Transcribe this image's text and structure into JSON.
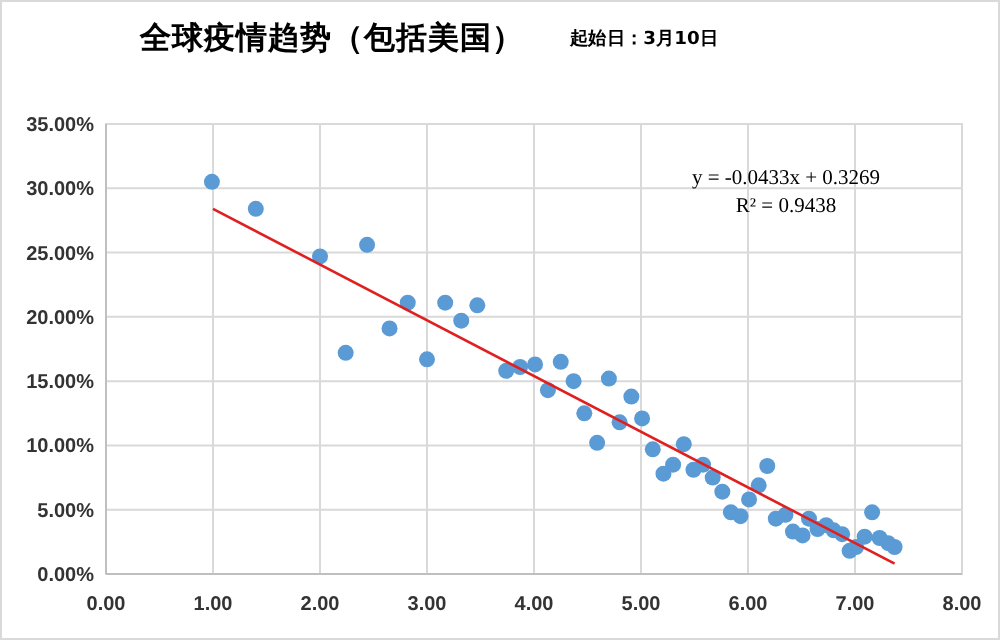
{
  "chart_data": {
    "type": "scatter",
    "title": "全球疫情趋势（包括美国）",
    "subtitle": "起始日：3月10日",
    "annotations": [
      "y = -0.0433x + 0.3269",
      "R² = 0.9438"
    ],
    "xlim": [
      0,
      8
    ],
    "xticks": [
      {
        "value": 0,
        "label": "0.00"
      },
      {
        "value": 1,
        "label": "1.00"
      },
      {
        "value": 2,
        "label": "2.00"
      },
      {
        "value": 3,
        "label": "3.00"
      },
      {
        "value": 4,
        "label": "4.00"
      },
      {
        "value": 5,
        "label": "5.00"
      },
      {
        "value": 6,
        "label": "6.00"
      },
      {
        "value": 7,
        "label": "7.00"
      },
      {
        "value": 8,
        "label": "8.00"
      }
    ],
    "ylim": [
      0,
      0.35
    ],
    "yticks": [
      {
        "value": 0,
        "label": "0.00%"
      },
      {
        "value": 0.05,
        "label": "5.00%"
      },
      {
        "value": 0.1,
        "label": "10.00%"
      },
      {
        "value": 0.15,
        "label": "15.00%"
      },
      {
        "value": 0.2,
        "label": "20.00%"
      },
      {
        "value": 0.25,
        "label": "25.00%"
      },
      {
        "value": 0.3,
        "label": "30.00%"
      },
      {
        "value": 0.35,
        "label": "35.00%"
      }
    ],
    "grid": true,
    "marker": "circle",
    "series": [
      {
        "color": "#5b9bd5",
        "x": [
          0.99,
          1.4,
          2.0,
          2.44,
          2.24,
          2.65,
          2.82,
          3.0,
          3.17,
          3.32,
          3.47,
          3.74,
          3.87,
          4.01,
          4.13,
          4.25,
          4.37,
          4.47,
          4.59,
          4.7,
          4.8,
          4.91,
          5.01,
          5.11,
          5.21,
          5.3,
          5.4,
          5.49,
          5.58,
          5.67,
          5.76,
          5.84,
          5.93,
          6.01,
          6.1,
          6.18,
          6.26,
          6.35,
          6.42,
          6.51,
          6.57,
          6.65,
          6.73,
          6.8,
          6.88,
          6.95,
          7.01,
          7.09,
          7.16,
          7.23,
          7.31,
          7.37
        ],
        "values": [
          0.305,
          0.284,
          0.247,
          0.256,
          0.172,
          0.191,
          0.211,
          0.167,
          0.211,
          0.197,
          0.209,
          0.158,
          0.161,
          0.163,
          0.143,
          0.165,
          0.15,
          0.125,
          0.102,
          0.152,
          0.118,
          0.138,
          0.121,
          0.097,
          0.078,
          0.085,
          0.101,
          0.081,
          0.085,
          0.075,
          0.064,
          0.048,
          0.045,
          0.058,
          0.069,
          0.084,
          0.043,
          0.046,
          0.033,
          0.03,
          0.043,
          0.035,
          0.038,
          0.034,
          0.031,
          0.018,
          0.021,
          0.029,
          0.048,
          0.028,
          0.024,
          0.021
        ]
      },
      {
        "type": "line",
        "color": "#e02020",
        "line_style": "solid",
        "marker": "none",
        "x": [
          1,
          7.37
        ],
        "values": [
          0.284,
          0.008
        ]
      }
    ]
  }
}
